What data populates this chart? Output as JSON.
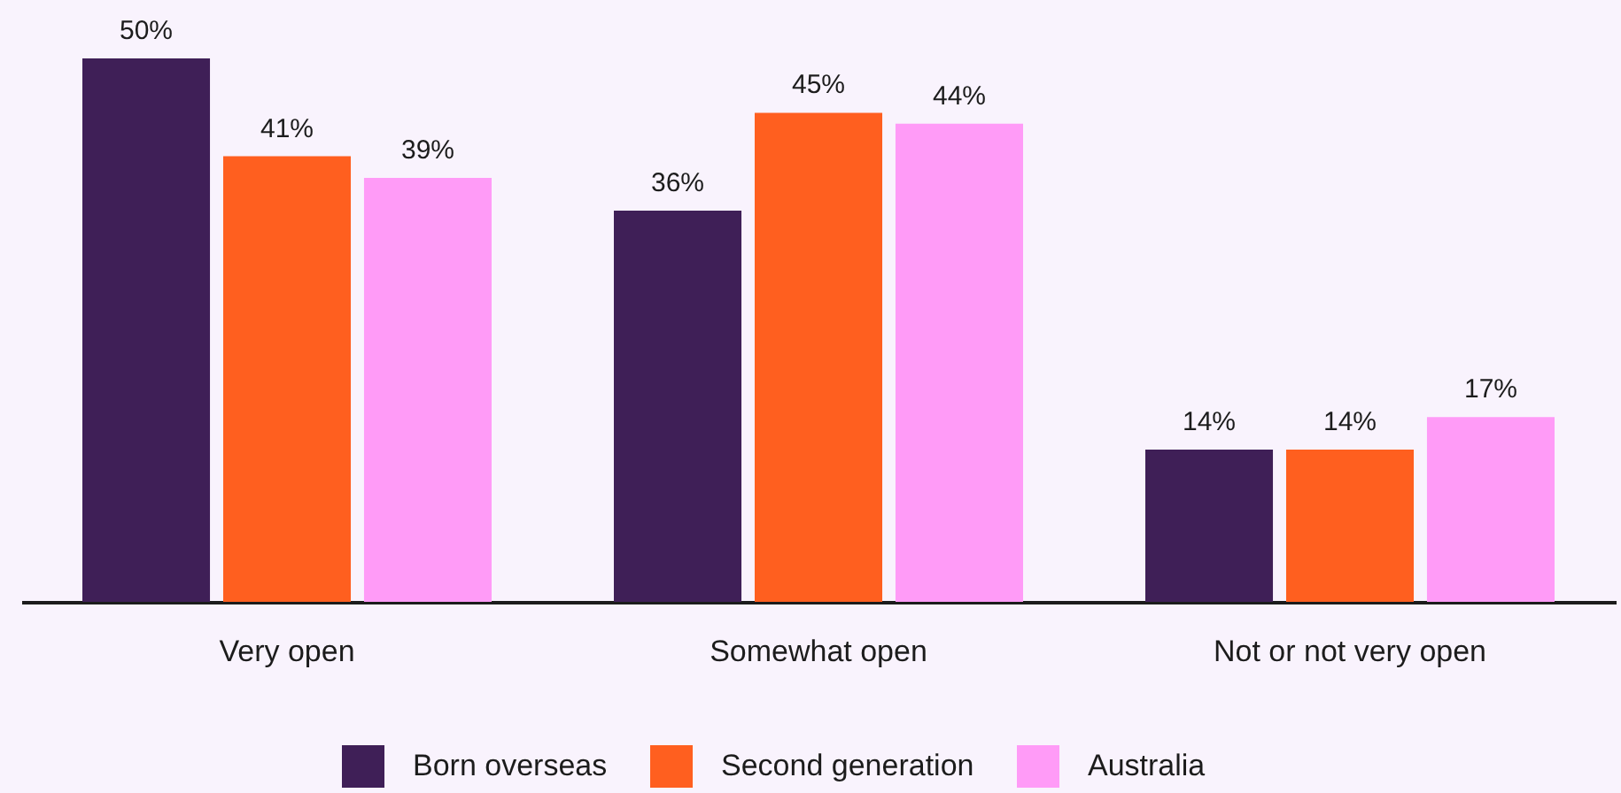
{
  "chart_data": {
    "type": "bar",
    "categories": [
      "Very open",
      "Somewhat open",
      "Not or not very open"
    ],
    "series": [
      {
        "name": "Born overseas",
        "color": "#3f1f57",
        "values": [
          50,
          36,
          14
        ],
        "value_labels": [
          "50%",
          "36%",
          "14%"
        ]
      },
      {
        "name": "Second generation",
        "color": "#ff5f1f",
        "values": [
          41,
          45,
          14
        ],
        "value_labels": [
          "41%",
          "45%",
          "14%"
        ]
      },
      {
        "name": "Australia",
        "color": "#ff9bf7",
        "values": [
          39,
          44,
          17
        ],
        "value_labels": [
          "39%",
          "44%",
          "17%"
        ]
      }
    ],
    "legend": "bottom"
  }
}
